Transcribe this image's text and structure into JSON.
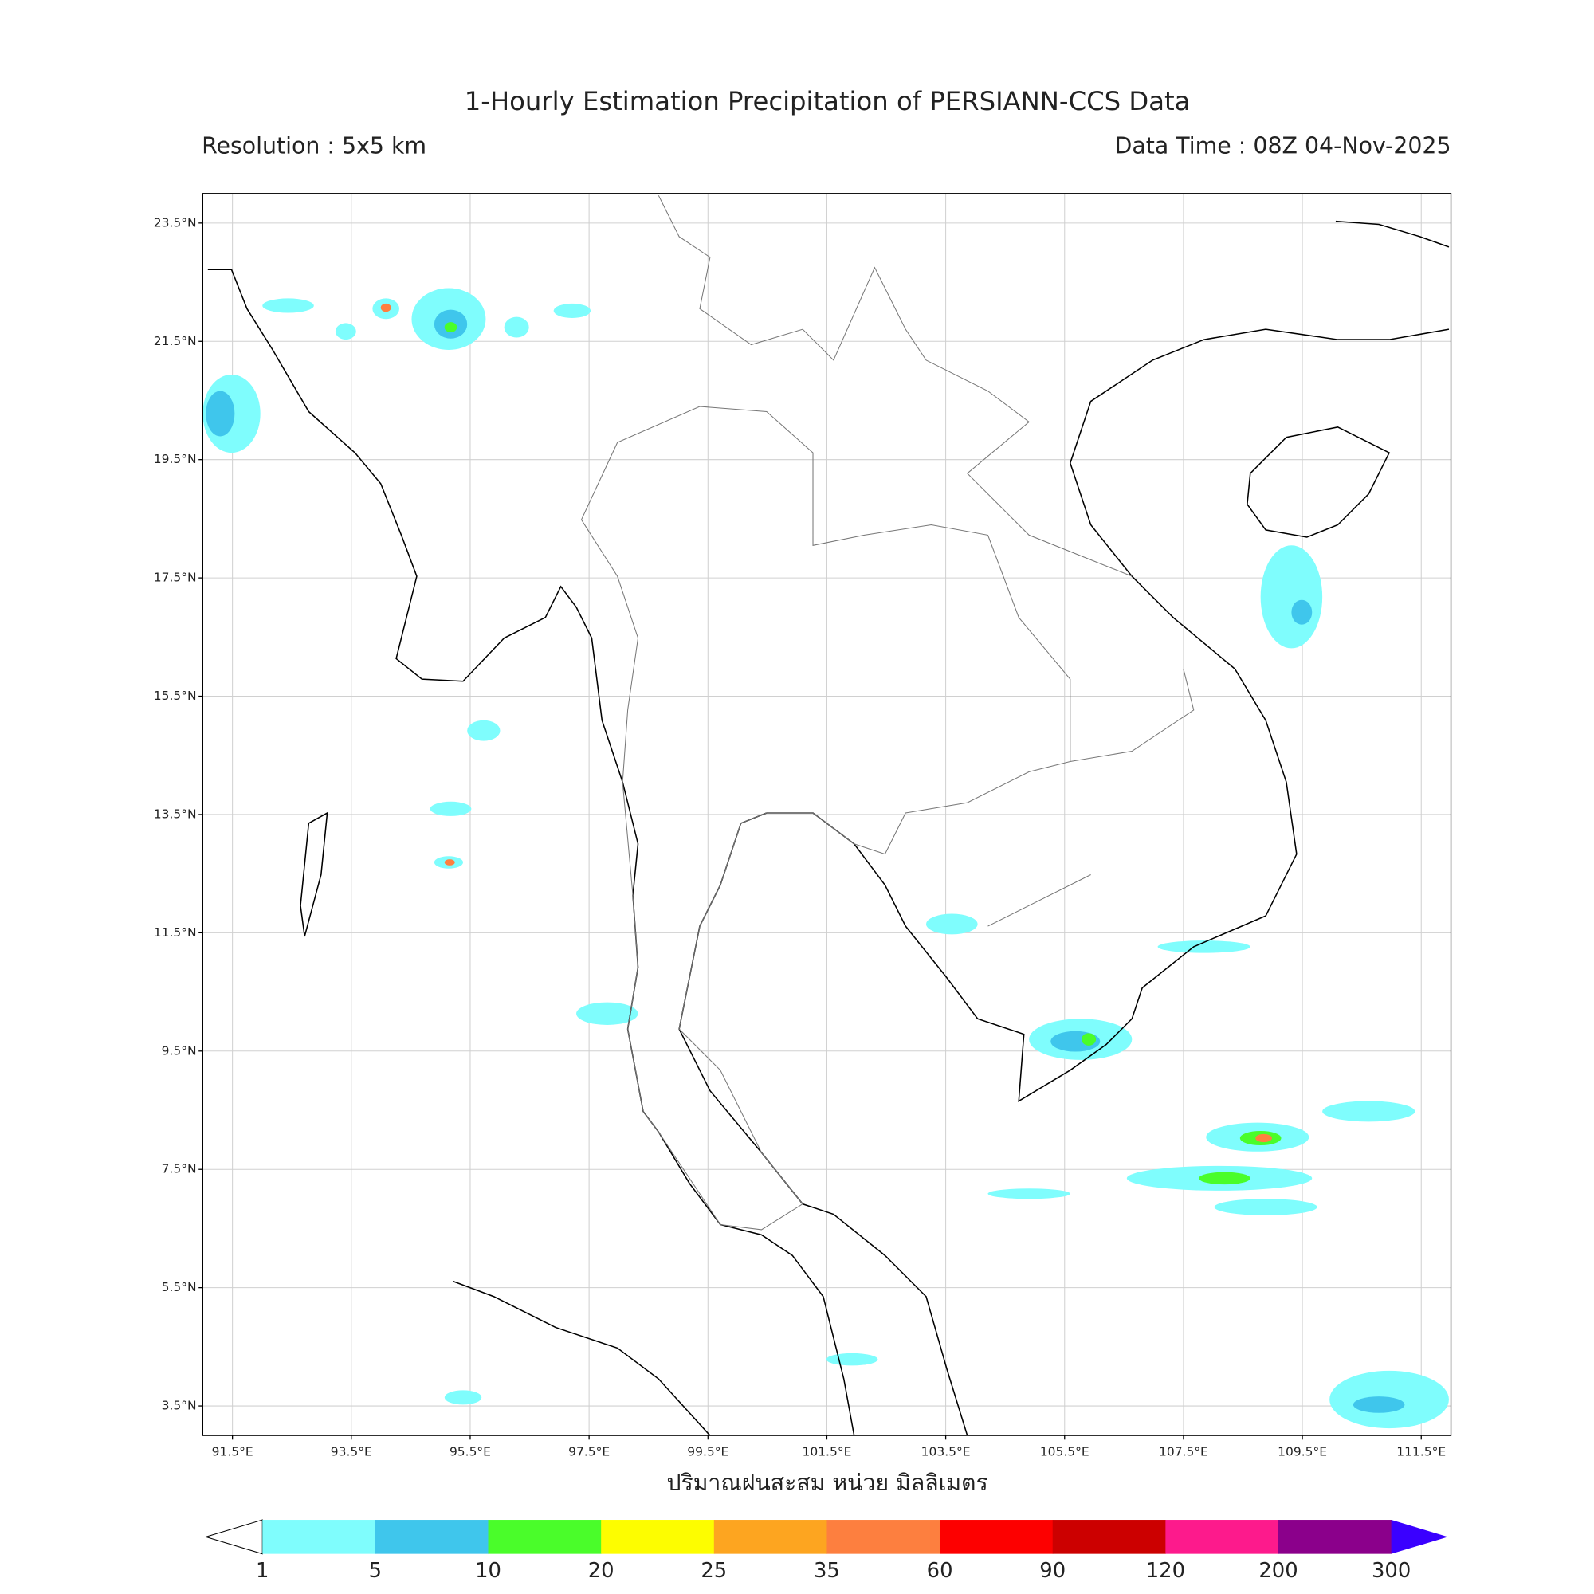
{
  "header": {
    "title": "1-Hourly Estimation Precipitation of PERSIANN-CCS Data",
    "resolution": "Resolution : 5x5 km",
    "data_time": "Data Time : 08Z 04-Nov-2025"
  },
  "map": {
    "lonlim": [
      91,
      112
    ],
    "latlim": [
      3,
      24
    ],
    "grid": true,
    "lon_ticks": [
      {
        "value": 91.5,
        "label": "91.5°E"
      },
      {
        "value": 93.5,
        "label": "93.5°E"
      },
      {
        "value": 95.5,
        "label": "95.5°E"
      },
      {
        "value": 97.5,
        "label": "97.5°E"
      },
      {
        "value": 99.5,
        "label": "99.5°E"
      },
      {
        "value": 101.5,
        "label": "101.5°E"
      },
      {
        "value": 103.5,
        "label": "103.5°E"
      },
      {
        "value": 105.5,
        "label": "105.5°E"
      },
      {
        "value": 107.5,
        "label": "107.5°E"
      },
      {
        "value": 109.5,
        "label": "109.5°E"
      },
      {
        "value": 111.5,
        "label": "111.5°E"
      }
    ],
    "lat_ticks": [
      {
        "value": 23.5,
        "label": "23.5°N"
      },
      {
        "value": 21.5,
        "label": "21.5°N"
      },
      {
        "value": 19.5,
        "label": "19.5°N"
      },
      {
        "value": 17.5,
        "label": "17.5°N"
      },
      {
        "value": 15.5,
        "label": "15.5°N"
      },
      {
        "value": 13.5,
        "label": "13.5°N"
      },
      {
        "value": 11.5,
        "label": "11.5°N"
      },
      {
        "value": 9.5,
        "label": "9.5°N"
      },
      {
        "value": 7.5,
        "label": "7.5°N"
      },
      {
        "value": 5.5,
        "label": "5.5°N"
      },
      {
        "value": 3.5,
        "label": "3.5°N"
      }
    ],
    "xlabel": "ปริมาณฝนสะสม หน่วย มิลลิเมตร"
  },
  "colorbar": {
    "levels": [
      1,
      5,
      10,
      20,
      25,
      35,
      60,
      90,
      120,
      200,
      300
    ],
    "colors": [
      "#7ffdfd",
      "#3fc6ec",
      "#4afd2a",
      "#fdfd00",
      "#fda520",
      "#fd7f3f",
      "#fd0000",
      "#cc0000",
      "#fd1a8c",
      "#8b008b"
    ],
    "under_color": "#ffffff",
    "over_color": "#3a00ff"
  }
}
